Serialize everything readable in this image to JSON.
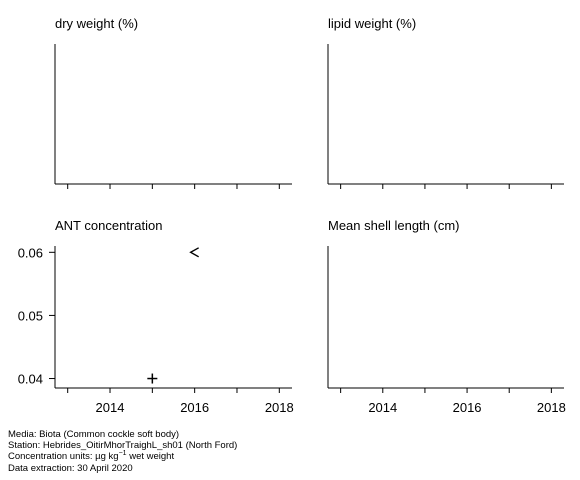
{
  "chart_data": [
    {
      "type": "scatter",
      "title": "dry weight (%)",
      "xlim": [
        2012.7,
        2018.3
      ],
      "xticks": [
        2013,
        2014,
        2015,
        2016,
        2017,
        2018
      ],
      "xtick_labels": [],
      "yticks": [],
      "series": []
    },
    {
      "type": "scatter",
      "title": "lipid weight (%)",
      "xlim": [
        2012.7,
        2018.3
      ],
      "xticks": [
        2013,
        2014,
        2015,
        2016,
        2017,
        2018
      ],
      "xtick_labels": [],
      "yticks": [],
      "series": []
    },
    {
      "type": "scatter",
      "title": "ANT concentration",
      "xlim": [
        2012.7,
        2018.3
      ],
      "ylim": [
        0.0385,
        0.061
      ],
      "xticks": [
        2013,
        2014,
        2015,
        2016,
        2017,
        2018
      ],
      "xtick_labels": [
        "2014",
        "2016",
        "2018"
      ],
      "yticks": [
        0.04,
        0.05,
        0.06
      ],
      "ytick_labels": [
        "0.04",
        "0.05",
        "0.06"
      ],
      "series": [
        {
          "marker": "+",
          "points": [
            {
              "x": 2015,
              "y": 0.04
            }
          ]
        },
        {
          "marker": "<",
          "points": [
            {
              "x": 2016,
              "y": 0.06
            }
          ]
        }
      ]
    },
    {
      "type": "scatter",
      "title": "Mean shell length (cm)",
      "xlim": [
        2012.7,
        2018.3
      ],
      "xticks": [
        2013,
        2014,
        2015,
        2016,
        2017,
        2018
      ],
      "xtick_labels": [
        "2014",
        "2016",
        "2018"
      ],
      "yticks": [],
      "series": []
    }
  ],
  "footer": {
    "media": "Media: Biota (Common cockle soft body)",
    "station": "Station: Hebrides_OitirMhorTraighL_sh01 (North Ford)",
    "units_prefix": "Concentration units:  µg kg",
    "units_sup": "−1",
    "units_suffix": " wet weight",
    "extraction": "Data extraction: 30 April 2020"
  }
}
